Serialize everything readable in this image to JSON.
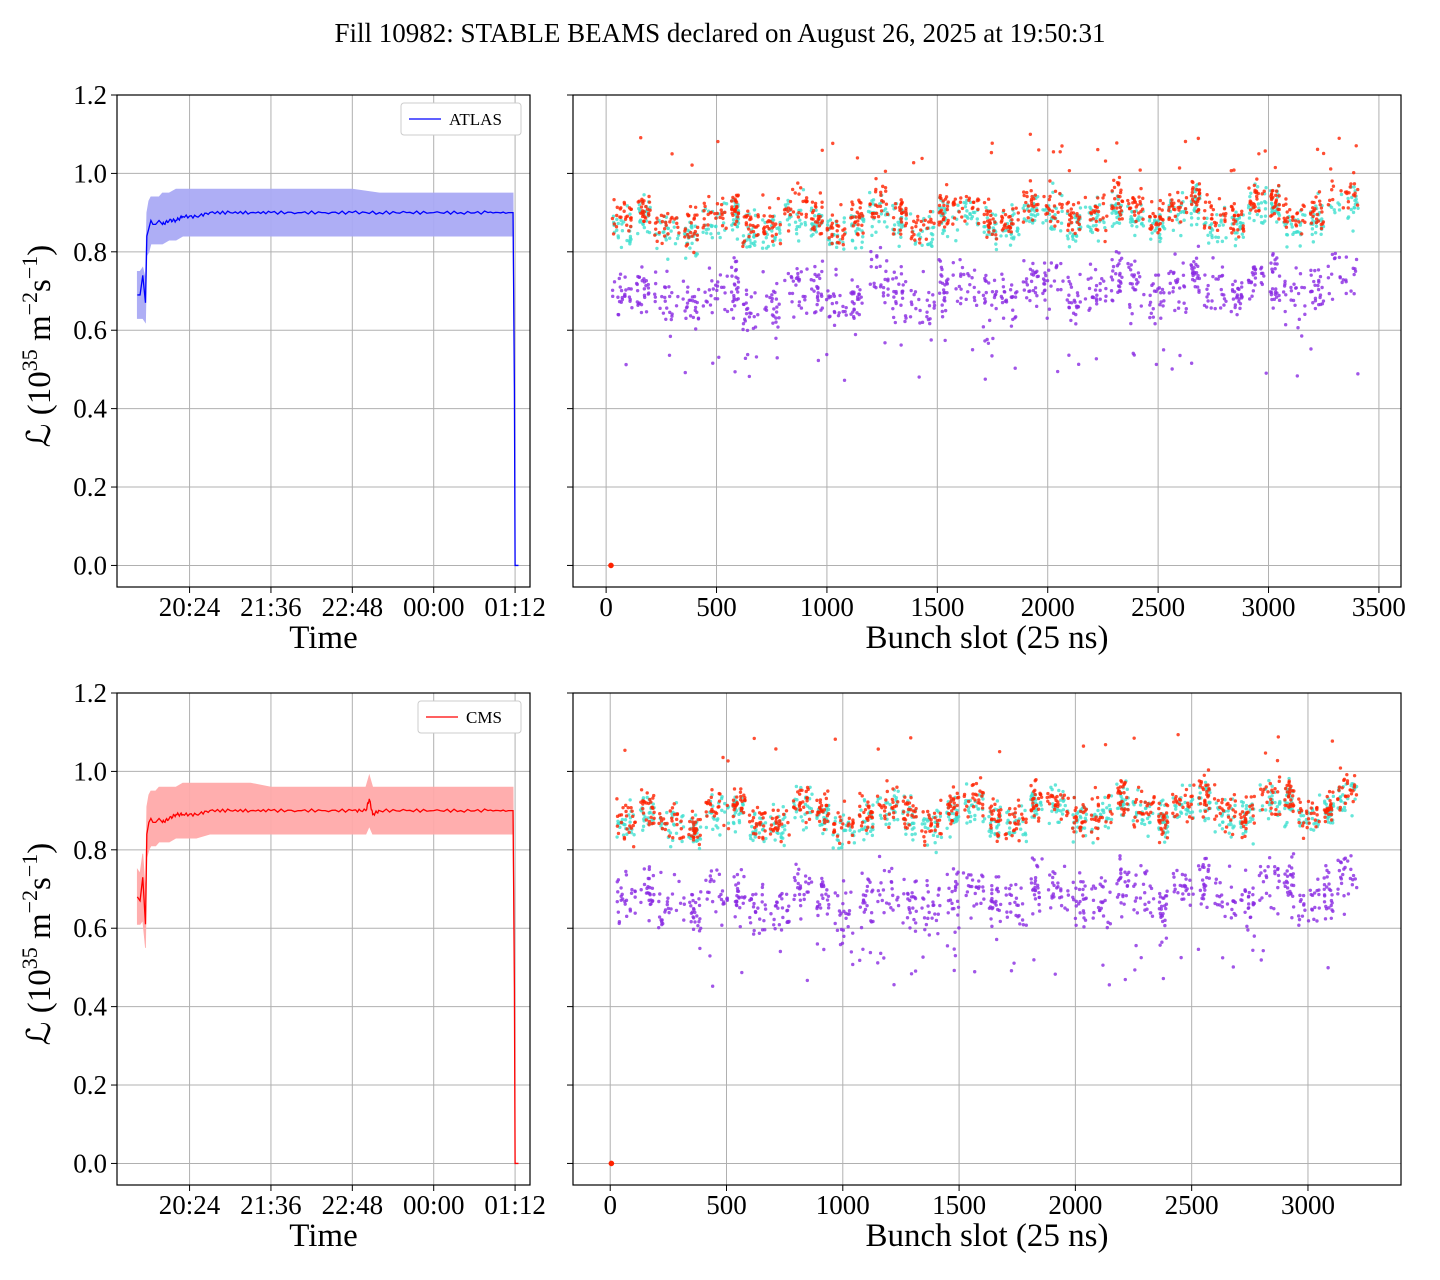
{
  "figure_title": "Fill 10982: STABLE BEAMS declared on August 26, 2025 at 19:50:31",
  "colors": {
    "atlas": "#0000ff",
    "atlas_band": "#aaaaf5",
    "cms": "#ff0000",
    "cms_band": "#ffaaaa",
    "bunch_low": "#8a2be2",
    "bunch_mid": "#40e0d0",
    "bunch_high": "#ff2200",
    "grid": "#b0b0b0"
  },
  "chart_data": [
    {
      "id": "atlas-time",
      "type": "line",
      "xlabel": "Time",
      "ylabel": "ℒ (10³⁵ m⁻²s⁻¹)",
      "ylabel_parts": {
        "pre": "ℒ (10",
        "exp1": "35",
        "mid": " m",
        "exp2": "−2",
        "mid2": "s",
        "exp3": "−1",
        "post": ")"
      },
      "xticks": [
        "20:24",
        "21:36",
        "22:48",
        "00:00",
        "01:12"
      ],
      "xticks_hours": [
        20.4,
        21.6,
        22.8,
        24.0,
        25.2
      ],
      "xlim_hours": [
        19.33,
        25.42
      ],
      "yticks": [
        "0.0",
        "0.2",
        "0.4",
        "0.6",
        "0.8",
        "1.0",
        "1.2"
      ],
      "ylim": [
        -0.055,
        1.2
      ],
      "grid": true,
      "legend": {
        "position": "top-right",
        "entries": [
          "ATLAS"
        ]
      },
      "series": [
        {
          "name": "ATLAS",
          "x_hours": [
            19.63,
            19.67,
            19.71,
            19.75,
            19.77,
            19.8,
            19.83,
            19.86,
            19.9,
            19.95,
            20.0,
            20.1,
            20.2,
            20.3,
            20.5,
            20.7,
            21.0,
            21.3,
            21.6,
            22.0,
            22.4,
            22.8,
            23.2,
            23.6,
            24.0,
            24.4,
            24.8,
            25.1,
            25.17,
            25.19,
            25.2,
            25.25
          ],
          "values": [
            0.69,
            0.69,
            0.74,
            0.67,
            0.84,
            0.86,
            0.88,
            0.87,
            0.87,
            0.88,
            0.87,
            0.88,
            0.88,
            0.89,
            0.89,
            0.9,
            0.9,
            0.9,
            0.9,
            0.9,
            0.9,
            0.9,
            0.9,
            0.9,
            0.9,
            0.9,
            0.9,
            0.9,
            0.9,
            0.45,
            0.0,
            0.0
          ],
          "band_low": [
            0.63,
            0.63,
            0.63,
            0.62,
            0.79,
            0.8,
            0.82,
            0.82,
            0.82,
            0.82,
            0.82,
            0.83,
            0.83,
            0.84,
            0.84,
            0.84,
            0.84,
            0.84,
            0.84,
            0.84,
            0.84,
            0.84,
            0.84,
            0.84,
            0.84,
            0.84,
            0.84,
            0.84,
            0.84,
            0.45,
            0.0,
            0.0
          ],
          "band_high": [
            0.75,
            0.75,
            0.76,
            0.73,
            0.9,
            0.93,
            0.94,
            0.94,
            0.94,
            0.94,
            0.95,
            0.95,
            0.96,
            0.96,
            0.96,
            0.96,
            0.96,
            0.96,
            0.96,
            0.96,
            0.96,
            0.96,
            0.95,
            0.95,
            0.95,
            0.95,
            0.95,
            0.95,
            0.95,
            0.45,
            0.0,
            0.0
          ]
        }
      ]
    },
    {
      "id": "atlas-bunch",
      "type": "scatter",
      "xlabel": "Bunch slot (25 ns)",
      "xticks": [
        0,
        500,
        1000,
        1500,
        2000,
        2500,
        3000,
        3500
      ],
      "xlim": [
        -150,
        3600
      ],
      "ylim": [
        -0.055,
        1.2
      ],
      "grid": true,
      "bunch_range": [
        20,
        3420
      ],
      "zero_point": [
        22,
        0.0
      ],
      "train_starts": [
        20,
        130,
        210,
        340,
        430,
        560,
        610,
        700,
        800,
        920,
        990,
        1100,
        1180,
        1290,
        1370,
        1500,
        1560,
        1700,
        1780,
        1880,
        1970,
        2080,
        2160,
        2280,
        2350,
        2450,
        2540,
        2640,
        2700,
        2820,
        2900,
        3000,
        3060,
        3180,
        3260,
        3420
      ],
      "series": [
        {
          "name": "",
          "color_key": "bunch_low",
          "mean": 0.68,
          "spread": 0.07,
          "tail_min": 0.47
        },
        {
          "name": "",
          "color_key": "bunch_mid",
          "mean": 0.86,
          "spread": 0.05
        },
        {
          "name": "",
          "color_key": "bunch_high",
          "mean": 0.88,
          "spread": 0.05,
          "tail_max": 1.1
        }
      ]
    },
    {
      "id": "cms-time",
      "type": "line",
      "xlabel": "Time",
      "ylabel": "ℒ (10³⁵ m⁻²s⁻¹)",
      "ylabel_parts": {
        "pre": "ℒ (10",
        "exp1": "35",
        "mid": " m",
        "exp2": "−2",
        "mid2": "s",
        "exp3": "−1",
        "post": ")"
      },
      "xticks": [
        "20:24",
        "21:36",
        "22:48",
        "00:00",
        "01:12"
      ],
      "xticks_hours": [
        20.4,
        21.6,
        22.8,
        24.0,
        25.2
      ],
      "xlim_hours": [
        19.33,
        25.42
      ],
      "yticks": [
        "0.0",
        "0.2",
        "0.4",
        "0.6",
        "0.8",
        "1.0",
        "1.2"
      ],
      "ylim": [
        -0.055,
        1.2
      ],
      "grid": true,
      "legend": {
        "position": "top-right",
        "entries": [
          "CMS"
        ]
      },
      "series": [
        {
          "name": "CMS",
          "x_hours": [
            19.63,
            19.67,
            19.71,
            19.75,
            19.77,
            19.8,
            19.83,
            19.86,
            19.9,
            19.95,
            20.0,
            20.1,
            20.2,
            20.3,
            20.5,
            20.7,
            21.0,
            21.3,
            21.6,
            22.0,
            22.4,
            22.8,
            23.0,
            23.05,
            23.1,
            23.2,
            23.6,
            24.0,
            24.4,
            24.8,
            25.1,
            25.17,
            25.19,
            25.2,
            25.25
          ],
          "values": [
            0.68,
            0.67,
            0.73,
            0.61,
            0.84,
            0.87,
            0.88,
            0.87,
            0.87,
            0.88,
            0.87,
            0.88,
            0.89,
            0.89,
            0.89,
            0.9,
            0.9,
            0.9,
            0.9,
            0.9,
            0.9,
            0.9,
            0.9,
            0.93,
            0.89,
            0.9,
            0.9,
            0.9,
            0.9,
            0.9,
            0.9,
            0.9,
            0.45,
            0.0,
            0.0
          ],
          "band_low": [
            0.61,
            0.61,
            0.62,
            0.55,
            0.78,
            0.8,
            0.81,
            0.81,
            0.81,
            0.82,
            0.82,
            0.82,
            0.83,
            0.83,
            0.83,
            0.84,
            0.84,
            0.84,
            0.84,
            0.84,
            0.84,
            0.84,
            0.84,
            0.86,
            0.84,
            0.84,
            0.84,
            0.84,
            0.84,
            0.84,
            0.84,
            0.84,
            0.45,
            0.0,
            0.0
          ],
          "band_high": [
            0.75,
            0.74,
            0.79,
            0.69,
            0.91,
            0.94,
            0.95,
            0.95,
            0.95,
            0.96,
            0.96,
            0.96,
            0.96,
            0.97,
            0.97,
            0.97,
            0.97,
            0.97,
            0.96,
            0.96,
            0.96,
            0.96,
            0.96,
            0.99,
            0.96,
            0.96,
            0.96,
            0.96,
            0.96,
            0.96,
            0.96,
            0.96,
            0.45,
            0.0,
            0.0
          ]
        }
      ]
    },
    {
      "id": "cms-bunch",
      "type": "scatter",
      "xlabel": "Bunch slot (25 ns)",
      "xticks": [
        0,
        500,
        1000,
        1500,
        2000,
        2500,
        3000
      ],
      "xlim": [
        -160,
        3400
      ],
      "ylim": [
        -0.055,
        1.2
      ],
      "grid": true,
      "bunch_range": [
        20,
        3220
      ],
      "zero_point": [
        5,
        0.0
      ],
      "train_starts": [
        20,
        120,
        200,
        330,
        400,
        520,
        590,
        680,
        780,
        880,
        950,
        1060,
        1140,
        1250,
        1330,
        1440,
        1510,
        1620,
        1690,
        1800,
        1870,
        1980,
        2060,
        2170,
        2240,
        2350,
        2410,
        2520,
        2590,
        2700,
        2780,
        2890,
        2950,
        3060,
        3120,
        3220
      ],
      "series": [
        {
          "name": "",
          "color_key": "bunch_low",
          "mean": 0.66,
          "spread": 0.07,
          "tail_min": 0.45
        },
        {
          "name": "",
          "color_key": "bunch_mid",
          "mean": 0.87,
          "spread": 0.05
        },
        {
          "name": "",
          "color_key": "bunch_high",
          "mean": 0.88,
          "spread": 0.05,
          "tail_max": 1.12
        }
      ]
    }
  ]
}
